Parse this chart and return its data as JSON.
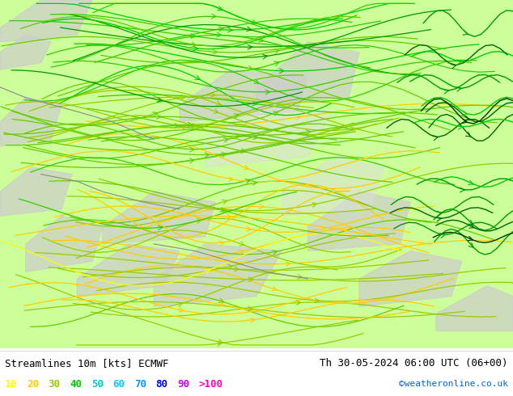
{
  "title_left": "Streamlines 10m [kts] ECMWF",
  "title_right": "Th 30-05-2024 06:00 UTC (06+00)",
  "credit": "©weatheronline.co.uk",
  "legend_values": [
    "10",
    "20",
    "30",
    "40",
    "50",
    "60",
    "70",
    "80",
    "90",
    ">100"
  ],
  "legend_colors": [
    "#ffff00",
    "#ffcc00",
    "#99cc00",
    "#00cc00",
    "#00cccc",
    "#00ccff",
    "#0099ff",
    "#0000ff",
    "#cc00ff",
    "#ff00cc"
  ],
  "bg_color": "#ffffff",
  "map_bg_green": "#ccff99",
  "map_bg_gray": "#d0d0d0",
  "streamline_color_slow": "#ffcc00",
  "streamline_color_medium": "#99cc00",
  "streamline_color_fast": "#006600",
  "figsize": [
    6.34,
    4.9
  ],
  "dpi": 100
}
